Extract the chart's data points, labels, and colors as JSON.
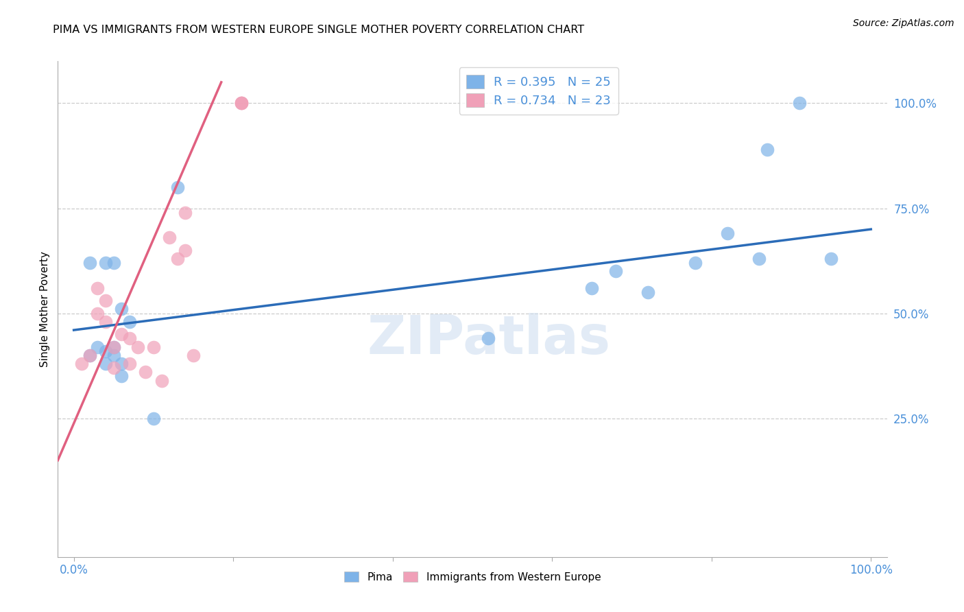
{
  "title": "PIMA VS IMMIGRANTS FROM WESTERN EUROPE SINGLE MOTHER POVERTY CORRELATION CHART",
  "source": "Source: ZipAtlas.com",
  "ylabel": "Single Mother Poverty",
  "watermark": "ZIPatlas",
  "xlim": [
    -0.02,
    1.02
  ],
  "ylim": [
    -0.08,
    1.1
  ],
  "ytick_positions": [
    0.25,
    0.5,
    0.75,
    1.0
  ],
  "ytick_labels": [
    "25.0%",
    "50.0%",
    "75.0%",
    "100.0%"
  ],
  "xtick_positions": [
    0.0,
    0.2,
    0.4,
    0.6,
    0.8,
    1.0
  ],
  "xtick_labels_show": [
    "0.0%",
    "",
    "",
    "",
    "",
    "100.0%"
  ],
  "grid_color": "#cccccc",
  "pima_color": "#7eb3e8",
  "immigrants_color": "#f0a0b8",
  "pima_line_color": "#2b6cb8",
  "immigrants_line_color": "#e06080",
  "legend_R_pima": "R = 0.395",
  "legend_N_pima": "N = 25",
  "legend_R_immigrants": "R = 0.734",
  "legend_N_immigrants": "N = 23",
  "legend_color": "#4a90d9",
  "pima_x": [
    0.02,
    0.03,
    0.04,
    0.04,
    0.05,
    0.05,
    0.06,
    0.06,
    0.07,
    0.1,
    0.13,
    0.52,
    0.65,
    0.68,
    0.72,
    0.78,
    0.82,
    0.86,
    0.87,
    0.91,
    0.95,
    0.02,
    0.04,
    0.05,
    0.06
  ],
  "pima_y": [
    0.4,
    0.42,
    0.38,
    0.41,
    0.4,
    0.42,
    0.35,
    0.38,
    0.48,
    0.25,
    0.8,
    0.44,
    0.56,
    0.6,
    0.55,
    0.62,
    0.69,
    0.63,
    0.89,
    1.0,
    0.63,
    0.62,
    0.62,
    0.62,
    0.51
  ],
  "immigrants_x": [
    0.01,
    0.02,
    0.03,
    0.03,
    0.04,
    0.04,
    0.05,
    0.05,
    0.06,
    0.07,
    0.07,
    0.08,
    0.09,
    0.1,
    0.11,
    0.12,
    0.13,
    0.14,
    0.14,
    0.15,
    0.21,
    0.21,
    0.21
  ],
  "immigrants_y": [
    0.38,
    0.4,
    0.5,
    0.56,
    0.48,
    0.53,
    0.37,
    0.42,
    0.45,
    0.38,
    0.44,
    0.42,
    0.36,
    0.42,
    0.34,
    0.68,
    0.63,
    0.65,
    0.74,
    0.4,
    1.0,
    1.0,
    1.0
  ],
  "pima_trend_x": [
    0.0,
    1.0
  ],
  "pima_trend_y": [
    0.46,
    0.7
  ],
  "immigrants_trend_x": [
    -0.02,
    0.185
  ],
  "immigrants_trend_y": [
    0.15,
    1.05
  ]
}
